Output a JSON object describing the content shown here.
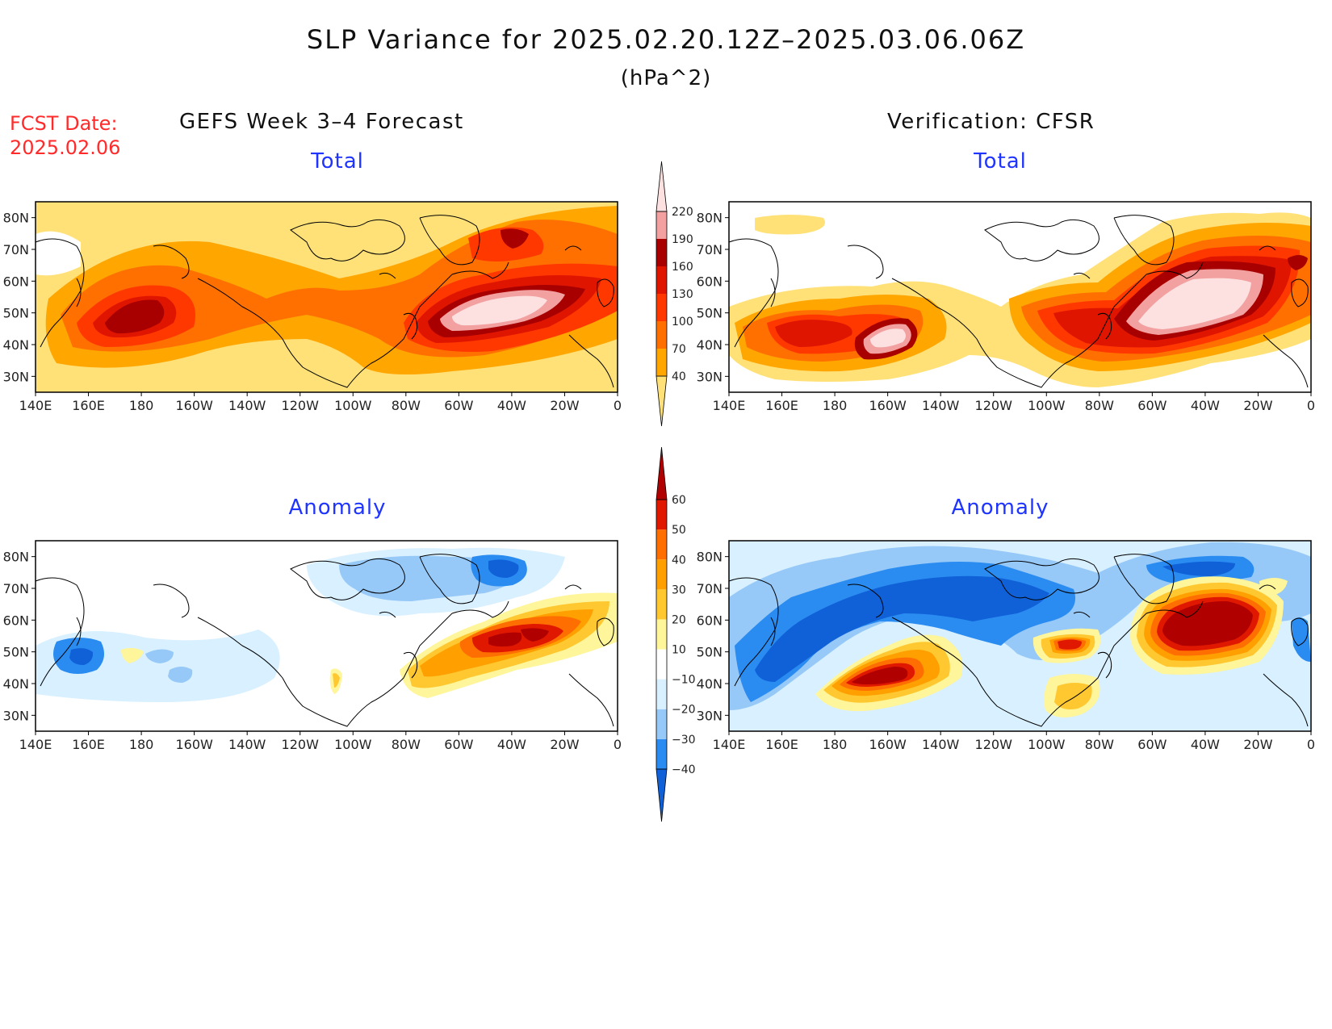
{
  "title": "SLP Variance for 2025.02.20.12Z–2025.03.06.06Z",
  "units": "(hPa^2)",
  "fcst_label_line1": "FCST Date:",
  "fcst_label_line2": "2025.02.06",
  "left_header": "GEFS Week 3–4 Forecast",
  "right_header": "Verification: CFSR",
  "panels": [
    {
      "id": "forecast-total",
      "subtitle": "Total"
    },
    {
      "id": "verification-total",
      "subtitle": "Total"
    },
    {
      "id": "forecast-anomaly",
      "subtitle": "Anomaly"
    },
    {
      "id": "verification-anomaly",
      "subtitle": "Anomaly"
    }
  ],
  "lon_ticks": [
    "140E",
    "160E",
    "180",
    "160W",
    "140W",
    "120W",
    "100W",
    "80W",
    "60W",
    "40W",
    "20W",
    "0"
  ],
  "lat_ticks": [
    "80N",
    "70N",
    "60N",
    "50N",
    "40N",
    "30N"
  ],
  "lon_range": [
    140,
    360
  ],
  "lat_range": [
    25,
    85
  ],
  "total_colorbar": {
    "levels": [
      "40",
      "70",
      "100",
      "130",
      "160",
      "190",
      "220"
    ],
    "colors": [
      "#ffe178",
      "#ffa600",
      "#ff7000",
      "#ff3800",
      "#e01500",
      "#a80000",
      "#f2a0a0",
      "#fde0e0"
    ]
  },
  "anomaly_colorbar": {
    "levels": [
      "−40",
      "−30",
      "−20",
      "−10",
      "10",
      "20",
      "30",
      "40",
      "50",
      "60"
    ],
    "colors": [
      "#1060d8",
      "#2a8cf0",
      "#96c8f8",
      "#d8f0ff",
      "#ffffff",
      "#fff59a",
      "#ffc830",
      "#ffa000",
      "#ff6e00",
      "#e01800",
      "#b00000"
    ]
  },
  "chart_data": [
    {
      "type": "heatmap",
      "panel": "forecast-total",
      "features": [
        {
          "lon": 175,
          "lat": 47,
          "peak_value": 175
        },
        {
          "lon": 310,
          "lat": 50,
          "peak_value": 230
        },
        {
          "lon": 318,
          "lat": 71,
          "peak_value": 140
        }
      ]
    },
    {
      "type": "heatmap",
      "panel": "verification-total",
      "features": [
        {
          "lon": 198,
          "lat": 42,
          "peak_value": 225
        },
        {
          "lon": 312,
          "lat": 53,
          "peak_value": 250
        },
        {
          "lon": 268,
          "lat": 50,
          "peak_value": 150
        },
        {
          "lon": 347,
          "lat": 68,
          "peak_value": 200
        }
      ]
    },
    {
      "type": "heatmap",
      "panel": "forecast-anomaly",
      "features": [
        {
          "lon": 163,
          "lat": 48,
          "peak_value": -35
        },
        {
          "lon": 320,
          "lat": 55,
          "peak_value": 55
        },
        {
          "lon": 312,
          "lat": 77,
          "peak_value": -30
        }
      ]
    },
    {
      "type": "heatmap",
      "panel": "verification-anomaly",
      "features": [
        {
          "lon": 196,
          "lat": 43,
          "peak_value": 65
        },
        {
          "lon": 325,
          "lat": 55,
          "peak_value": 65
        },
        {
          "lon": 270,
          "lat": 52,
          "peak_value": 55
        },
        {
          "lon": 220,
          "lat": 70,
          "peak_value": -40
        }
      ]
    }
  ]
}
